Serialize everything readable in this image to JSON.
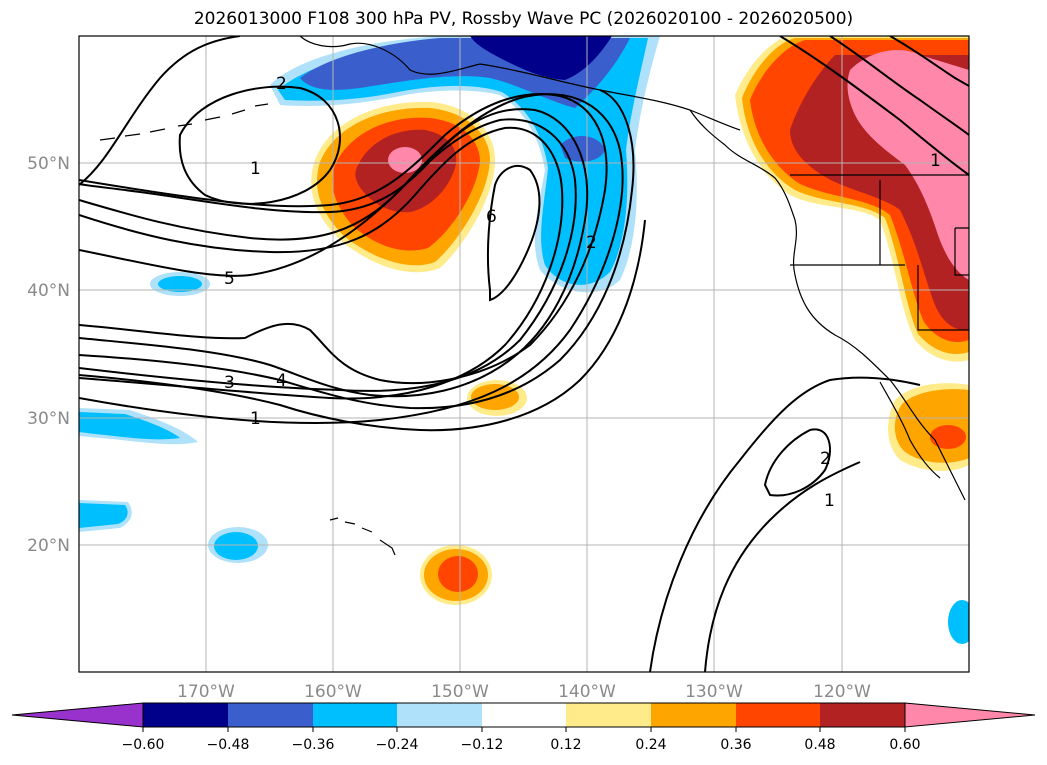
{
  "title": "2026013000 F108 300 hPa PV, Rossby Wave PC (2026020100 - 2026020500)",
  "axes": {
    "lat_labels": [
      "50°N",
      "40°N",
      "30°N",
      "20°N"
    ],
    "lon_labels": [
      "170°W",
      "160°W",
      "150°W",
      "140°W",
      "130°W",
      "120°W"
    ]
  },
  "contour_labels": [
    "2",
    "1",
    "5",
    "6",
    "2",
    "3",
    "4",
    "1",
    "1",
    "2",
    "1"
  ],
  "colorbar": {
    "ticks": [
      "−0.60",
      "−0.48",
      "−0.36",
      "−0.24",
      "−0.12",
      "0.12",
      "0.24",
      "0.36",
      "0.48",
      "0.60"
    ],
    "colors": [
      "#9932cc",
      "#00008b",
      "#3a5fcd",
      "#00bfff",
      "#afe2fa",
      "#ffffff",
      "#ffeb8a",
      "#ffa500",
      "#ff4500",
      "#b22222",
      "#ff88aa"
    ]
  },
  "chart_data": {
    "type": "map",
    "projection": "lat-lon",
    "lon_range": [
      -180,
      -110
    ],
    "lat_range": [
      10,
      60
    ],
    "fill_field": "Rossby Wave PC",
    "contour_field": "300 hPa PV",
    "contour_levels": [
      1,
      2,
      3,
      4,
      5,
      6
    ],
    "fill_levels": [
      -0.6,
      -0.48,
      -0.36,
      -0.24,
      -0.12,
      0.12,
      0.24,
      0.36,
      0.48,
      0.6
    ],
    "grid": true
  }
}
